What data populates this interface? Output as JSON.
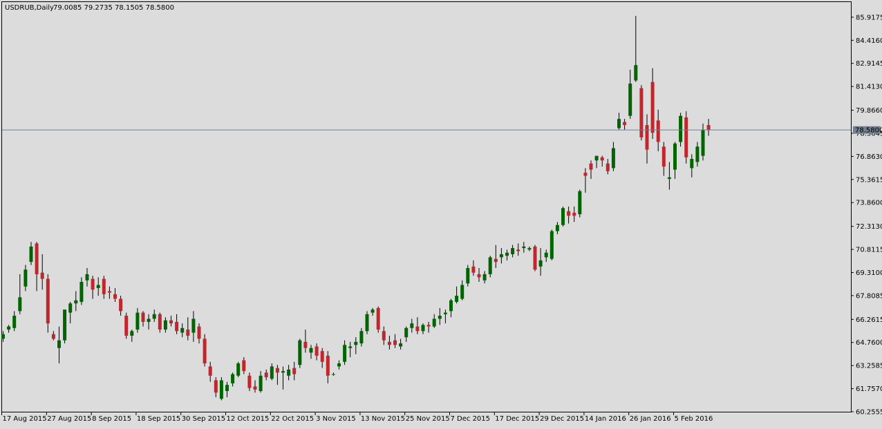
{
  "header": {
    "symbol_timeframe": "USDRUB,Daily",
    "ohlc": "79.0085 79.2735 78.1505 78.5800"
  },
  "colors": {
    "background": "#dcdcdc",
    "bull": "#006400",
    "bear": "#c0272d",
    "wick": "#000000",
    "price_line": "#708090",
    "price_label_bg": "#708090",
    "price_label_text": "#ffffff",
    "axis": "#000000"
  },
  "chart_data": {
    "type": "candlestick",
    "symbol": "USDRUB",
    "timeframe": "Daily",
    "current_price": "78.5800",
    "ylim": [
      60.2555,
      86.9
    ],
    "y_ticks": [
      "85.9175",
      "84.4160",
      "82.9145",
      "81.4130",
      "79.8660",
      "78.3645",
      "76.8630",
      "75.3615",
      "73.8600",
      "72.3130",
      "70.8115",
      "69.3100",
      "67.8085",
      "66.2615",
      "64.7600",
      "63.2585",
      "61.7570",
      "60.2555"
    ],
    "x_ticks": [
      "17 Aug 2015",
      "27 Aug 2015",
      "8 Sep 2015",
      "18 Sep 2015",
      "30 Sep 2015",
      "12 Oct 2015",
      "22 Oct 2015",
      "3 Nov 2015",
      "13 Nov 2015",
      "25 Nov 2015",
      "7 Dec 2015",
      "17 Dec 2015",
      "29 Dec 2015",
      "14 Jan 2016",
      "26 Jan 2016",
      "5 Feb 2016"
    ],
    "x_tick_bars": [
      0,
      8,
      16,
      24,
      32,
      40,
      48,
      56,
      64,
      72,
      80,
      88,
      96,
      104,
      112,
      120
    ],
    "grid": false,
    "candles": [
      {
        "o": 65.0,
        "h": 65.5,
        "l": 64.8,
        "c": 65.3
      },
      {
        "o": 65.6,
        "h": 65.9,
        "l": 65.4,
        "c": 65.8
      },
      {
        "o": 65.7,
        "h": 66.8,
        "l": 65.5,
        "c": 66.5
      },
      {
        "o": 66.8,
        "h": 69.2,
        "l": 66.6,
        "c": 67.7
      },
      {
        "o": 68.4,
        "h": 69.8,
        "l": 68.1,
        "c": 69.5
      },
      {
        "o": 70.0,
        "h": 71.3,
        "l": 69.8,
        "c": 71.0
      },
      {
        "o": 71.2,
        "h": 71.3,
        "l": 68.1,
        "c": 69.2
      },
      {
        "o": 69.3,
        "h": 70.5,
        "l": 68.2,
        "c": 68.9
      },
      {
        "o": 68.9,
        "h": 69.2,
        "l": 65.4,
        "c": 66.0
      },
      {
        "o": 65.3,
        "h": 65.5,
        "l": 64.9,
        "c": 65.0
      },
      {
        "o": 64.4,
        "h": 65.8,
        "l": 63.4,
        "c": 64.9
      },
      {
        "o": 64.9,
        "h": 66.9,
        "l": 64.7,
        "c": 66.9
      },
      {
        "o": 66.7,
        "h": 67.4,
        "l": 66.0,
        "c": 67.3
      },
      {
        "o": 67.3,
        "h": 68.1,
        "l": 66.8,
        "c": 67.5
      },
      {
        "o": 67.4,
        "h": 69.0,
        "l": 67.2,
        "c": 68.7
      },
      {
        "o": 68.8,
        "h": 69.6,
        "l": 68.4,
        "c": 69.2
      },
      {
        "o": 68.9,
        "h": 69.1,
        "l": 67.6,
        "c": 68.2
      },
      {
        "o": 68.3,
        "h": 69.0,
        "l": 67.8,
        "c": 68.5
      },
      {
        "o": 68.9,
        "h": 69.1,
        "l": 67.6,
        "c": 67.9
      },
      {
        "o": 68.1,
        "h": 68.4,
        "l": 67.6,
        "c": 68.0
      },
      {
        "o": 67.9,
        "h": 68.3,
        "l": 67.4,
        "c": 67.6
      },
      {
        "o": 67.6,
        "h": 67.8,
        "l": 66.5,
        "c": 66.8
      },
      {
        "o": 66.5,
        "h": 66.7,
        "l": 65.0,
        "c": 65.2
      },
      {
        "o": 65.2,
        "h": 65.6,
        "l": 64.8,
        "c": 65.5
      },
      {
        "o": 65.6,
        "h": 67.0,
        "l": 65.4,
        "c": 66.7
      },
      {
        "o": 66.7,
        "h": 66.8,
        "l": 65.8,
        "c": 66.1
      },
      {
        "o": 66.1,
        "h": 66.6,
        "l": 65.6,
        "c": 66.3
      },
      {
        "o": 66.3,
        "h": 66.9,
        "l": 66.1,
        "c": 66.6
      },
      {
        "o": 66.6,
        "h": 66.7,
        "l": 65.4,
        "c": 65.6
      },
      {
        "o": 65.6,
        "h": 66.4,
        "l": 65.4,
        "c": 66.2
      },
      {
        "o": 66.2,
        "h": 66.5,
        "l": 65.8,
        "c": 66.0
      },
      {
        "o": 66.1,
        "h": 66.6,
        "l": 65.3,
        "c": 65.5
      },
      {
        "o": 65.4,
        "h": 66.0,
        "l": 65.1,
        "c": 65.7
      },
      {
        "o": 65.6,
        "h": 66.4,
        "l": 64.9,
        "c": 65.2
      },
      {
        "o": 65.4,
        "h": 66.8,
        "l": 64.8,
        "c": 66.3
      },
      {
        "o": 65.8,
        "h": 66.0,
        "l": 64.7,
        "c": 65.0
      },
      {
        "o": 65.0,
        "h": 65.3,
        "l": 63.2,
        "c": 63.4
      },
      {
        "o": 63.2,
        "h": 63.5,
        "l": 62.2,
        "c": 62.6
      },
      {
        "o": 62.3,
        "h": 62.5,
        "l": 61.2,
        "c": 61.5
      },
      {
        "o": 61.1,
        "h": 62.5,
        "l": 61.0,
        "c": 62.3
      },
      {
        "o": 61.6,
        "h": 62.2,
        "l": 61.2,
        "c": 62.0
      },
      {
        "o": 62.1,
        "h": 62.8,
        "l": 61.9,
        "c": 62.7
      },
      {
        "o": 62.6,
        "h": 63.5,
        "l": 62.5,
        "c": 63.4
      },
      {
        "o": 63.6,
        "h": 63.8,
        "l": 62.7,
        "c": 62.9
      },
      {
        "o": 62.6,
        "h": 62.8,
        "l": 61.6,
        "c": 61.8
      },
      {
        "o": 61.9,
        "h": 62.3,
        "l": 61.5,
        "c": 61.7
      },
      {
        "o": 61.6,
        "h": 62.9,
        "l": 61.5,
        "c": 62.6
      },
      {
        "o": 62.8,
        "h": 63.0,
        "l": 62.3,
        "c": 62.5
      },
      {
        "o": 62.4,
        "h": 63.4,
        "l": 62.3,
        "c": 63.2
      },
      {
        "o": 63.1,
        "h": 63.3,
        "l": 62.0,
        "c": 62.8
      },
      {
        "o": 62.8,
        "h": 63.2,
        "l": 61.7,
        "c": 62.9
      },
      {
        "o": 62.6,
        "h": 63.3,
        "l": 62.3,
        "c": 63.0
      },
      {
        "o": 63.1,
        "h": 63.5,
        "l": 62.3,
        "c": 62.7
      },
      {
        "o": 63.3,
        "h": 65.0,
        "l": 63.1,
        "c": 64.9
      },
      {
        "o": 64.8,
        "h": 65.6,
        "l": 64.1,
        "c": 64.4
      },
      {
        "o": 64.1,
        "h": 64.6,
        "l": 63.7,
        "c": 64.4
      },
      {
        "o": 64.5,
        "h": 64.7,
        "l": 63.6,
        "c": 63.9
      },
      {
        "o": 64.2,
        "h": 64.4,
        "l": 63.1,
        "c": 63.5
      },
      {
        "o": 63.9,
        "h": 64.2,
        "l": 62.1,
        "c": 62.6
      },
      {
        "o": 62.7,
        "h": 62.8,
        "l": 62.6,
        "c": 62.7
      },
      {
        "o": 63.2,
        "h": 63.6,
        "l": 63.0,
        "c": 63.4
      },
      {
        "o": 63.5,
        "h": 64.9,
        "l": 63.3,
        "c": 64.6
      },
      {
        "o": 64.4,
        "h": 64.8,
        "l": 63.8,
        "c": 64.5
      },
      {
        "o": 64.6,
        "h": 65.1,
        "l": 64.0,
        "c": 64.8
      },
      {
        "o": 64.7,
        "h": 65.7,
        "l": 64.5,
        "c": 65.5
      },
      {
        "o": 65.5,
        "h": 66.8,
        "l": 65.3,
        "c": 66.6
      },
      {
        "o": 66.7,
        "h": 67.0,
        "l": 66.5,
        "c": 66.9
      },
      {
        "o": 67.0,
        "h": 67.1,
        "l": 65.4,
        "c": 65.6
      },
      {
        "o": 65.5,
        "h": 65.8,
        "l": 64.6,
        "c": 64.9
      },
      {
        "o": 64.8,
        "h": 65.2,
        "l": 64.3,
        "c": 64.6
      },
      {
        "o": 64.9,
        "h": 65.3,
        "l": 64.4,
        "c": 64.6
      },
      {
        "o": 64.5,
        "h": 65.0,
        "l": 64.3,
        "c": 64.7
      },
      {
        "o": 65.1,
        "h": 65.8,
        "l": 64.8,
        "c": 65.7
      },
      {
        "o": 65.7,
        "h": 66.3,
        "l": 65.4,
        "c": 66.0
      },
      {
        "o": 65.8,
        "h": 66.4,
        "l": 65.3,
        "c": 65.5
      },
      {
        "o": 65.5,
        "h": 66.0,
        "l": 65.3,
        "c": 65.9
      },
      {
        "o": 65.9,
        "h": 66.1,
        "l": 65.4,
        "c": 65.8
      },
      {
        "o": 65.8,
        "h": 66.6,
        "l": 65.7,
        "c": 66.3
      },
      {
        "o": 66.3,
        "h": 67.0,
        "l": 65.9,
        "c": 66.5
      },
      {
        "o": 66.6,
        "h": 66.9,
        "l": 66.0,
        "c": 66.7
      },
      {
        "o": 66.8,
        "h": 67.6,
        "l": 66.4,
        "c": 67.5
      },
      {
        "o": 67.4,
        "h": 68.4,
        "l": 67.3,
        "c": 67.8
      },
      {
        "o": 67.6,
        "h": 68.8,
        "l": 67.5,
        "c": 68.5
      },
      {
        "o": 68.6,
        "h": 69.8,
        "l": 68.4,
        "c": 69.6
      },
      {
        "o": 69.7,
        "h": 70.1,
        "l": 69.1,
        "c": 69.3
      },
      {
        "o": 69.2,
        "h": 69.6,
        "l": 68.7,
        "c": 69.0
      },
      {
        "o": 68.8,
        "h": 69.4,
        "l": 68.6,
        "c": 69.2
      },
      {
        "o": 69.2,
        "h": 70.4,
        "l": 69.0,
        "c": 70.3
      },
      {
        "o": 70.2,
        "h": 71.1,
        "l": 69.6,
        "c": 70.0
      },
      {
        "o": 70.3,
        "h": 70.9,
        "l": 69.9,
        "c": 70.5
      },
      {
        "o": 70.4,
        "h": 70.8,
        "l": 70.1,
        "c": 70.6
      },
      {
        "o": 70.5,
        "h": 71.1,
        "l": 70.3,
        "c": 70.9
      },
      {
        "o": 70.8,
        "h": 71.2,
        "l": 70.4,
        "c": 70.7
      },
      {
        "o": 70.9,
        "h": 71.3,
        "l": 70.6,
        "c": 71.0
      },
      {
        "o": 70.8,
        "h": 71.0,
        "l": 70.7,
        "c": 70.9
      },
      {
        "o": 71.0,
        "h": 71.1,
        "l": 69.4,
        "c": 69.5
      },
      {
        "o": 69.7,
        "h": 70.9,
        "l": 69.1,
        "c": 70.1
      },
      {
        "o": 70.3,
        "h": 70.8,
        "l": 70.0,
        "c": 70.6
      },
      {
        "o": 70.2,
        "h": 72.1,
        "l": 70.1,
        "c": 72.0
      },
      {
        "o": 72.0,
        "h": 72.6,
        "l": 71.8,
        "c": 72.4
      },
      {
        "o": 72.4,
        "h": 73.6,
        "l": 72.3,
        "c": 73.5
      },
      {
        "o": 73.3,
        "h": 73.6,
        "l": 72.5,
        "c": 73.0
      },
      {
        "o": 73.2,
        "h": 73.6,
        "l": 72.6,
        "c": 73.0
      },
      {
        "o": 73.1,
        "h": 74.7,
        "l": 72.9,
        "c": 74.6
      },
      {
        "o": 75.8,
        "h": 76.1,
        "l": 74.5,
        "c": 75.6
      },
      {
        "o": 76.4,
        "h": 76.6,
        "l": 75.4,
        "c": 76.0
      },
      {
        "o": 76.6,
        "h": 76.9,
        "l": 76.1,
        "c": 76.9
      },
      {
        "o": 76.8,
        "h": 76.9,
        "l": 76.2,
        "c": 76.6
      },
      {
        "o": 76.4,
        "h": 76.7,
        "l": 75.7,
        "c": 75.9
      },
      {
        "o": 76.1,
        "h": 77.8,
        "l": 75.9,
        "c": 77.4
      },
      {
        "o": 78.7,
        "h": 79.7,
        "l": 78.6,
        "c": 79.3
      },
      {
        "o": 79.1,
        "h": 79.3,
        "l": 78.6,
        "c": 78.9
      },
      {
        "o": 79.5,
        "h": 82.5,
        "l": 79.3,
        "c": 81.6
      },
      {
        "o": 81.8,
        "h": 86.0,
        "l": 81.7,
        "c": 82.8
      },
      {
        "o": 81.3,
        "h": 81.5,
        "l": 77.9,
        "c": 78.1
      },
      {
        "o": 78.9,
        "h": 79.6,
        "l": 76.4,
        "c": 77.3
      },
      {
        "o": 81.7,
        "h": 82.6,
        "l": 78.0,
        "c": 78.4
      },
      {
        "o": 79.2,
        "h": 79.9,
        "l": 77.2,
        "c": 77.8
      },
      {
        "o": 77.5,
        "h": 77.8,
        "l": 75.6,
        "c": 76.2
      },
      {
        "o": 75.4,
        "h": 76.5,
        "l": 74.7,
        "c": 75.5
      },
      {
        "o": 76.0,
        "h": 77.8,
        "l": 75.4,
        "c": 77.7
      },
      {
        "o": 77.8,
        "h": 79.7,
        "l": 77.5,
        "c": 79.5
      },
      {
        "o": 79.4,
        "h": 79.8,
        "l": 76.4,
        "c": 76.8
      },
      {
        "o": 76.1,
        "h": 77.0,
        "l": 75.5,
        "c": 76.7
      },
      {
        "o": 76.5,
        "h": 77.8,
        "l": 76.2,
        "c": 77.5
      },
      {
        "o": 76.9,
        "h": 79.0,
        "l": 76.6,
        "c": 78.6
      },
      {
        "o": 78.9,
        "h": 79.3,
        "l": 78.2,
        "c": 78.6
      }
    ]
  }
}
